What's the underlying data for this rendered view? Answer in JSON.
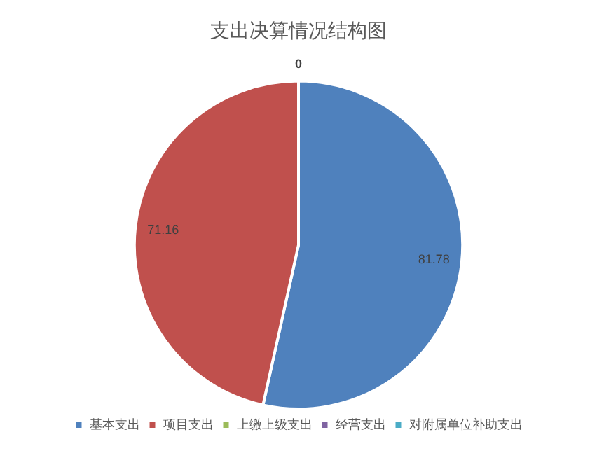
{
  "chart_data": {
    "type": "pie",
    "title": "支出决算情况结构图",
    "categories": [
      "基本支出",
      "项目支出",
      "上缴上级支出",
      "经营支出",
      "对附属单位补助支出"
    ],
    "values": [
      81.78,
      71.16,
      0,
      0,
      0
    ],
    "colors": [
      "#4f81bd",
      "#c0504d",
      "#9bbb59",
      "#8064a2",
      "#4bacc6"
    ],
    "value_labels": [
      "81.78",
      "71.16",
      "0",
      null,
      null
    ],
    "legend": "bottom"
  }
}
